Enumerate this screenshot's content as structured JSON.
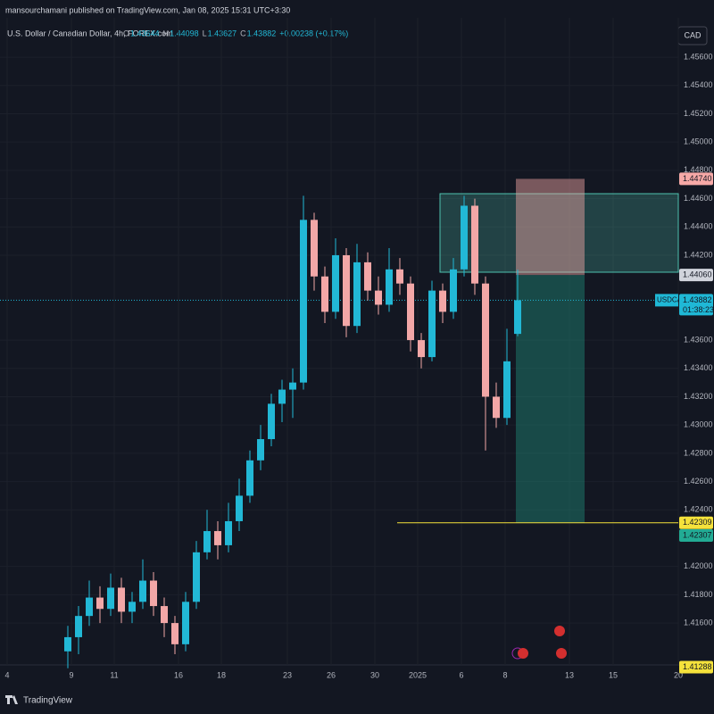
{
  "header": {
    "publisher": "mansourchamani published on TradingView.com, Jan 08, 2025 15:31 UTC+3:30",
    "symbol": "U.S. Dollar / Canadian Dollar, 4h, FOREX.com",
    "ohlc_labels": [
      "O",
      "H",
      "L",
      "C"
    ],
    "change": "+0.00238 (+0.17%)",
    "currency": "CAD"
  },
  "footer": {
    "brand": "TradingView"
  },
  "chart_data": {
    "type": "candlestick",
    "up_color": "#22b8d6",
    "down_color": "#f2a7a7",
    "x": [
      17,
      20,
      23,
      26,
      29,
      32,
      35,
      38,
      41,
      44,
      47,
      50,
      53,
      56,
      59,
      62,
      65,
      68,
      71,
      74,
      77,
      80,
      83,
      86,
      89,
      92,
      95,
      98,
      101,
      104,
      107,
      110,
      113,
      116,
      119,
      122,
      125,
      128,
      131,
      134,
      137,
      140,
      143
    ],
    "open": [
      1.414,
      1.415,
      1.4165,
      1.4178,
      1.417,
      1.4185,
      1.4168,
      1.4175,
      1.419,
      1.4172,
      1.416,
      1.4145,
      1.4175,
      1.421,
      1.4225,
      1.4215,
      1.4232,
      1.425,
      1.4275,
      1.429,
      1.4315,
      1.4325,
      1.433,
      1.4445,
      1.4405,
      1.438,
      1.442,
      1.437,
      1.4415,
      1.4395,
      1.4385,
      1.441,
      1.44,
      1.436,
      1.4348,
      1.4395,
      1.438,
      1.441,
      1.4455,
      1.44,
      1.432,
      1.4305,
      1.43644
    ],
    "high": [
      1.4158,
      1.4172,
      1.419,
      1.4186,
      1.4195,
      1.4192,
      1.4182,
      1.4205,
      1.4196,
      1.4178,
      1.4165,
      1.4182,
      1.4218,
      1.424,
      1.4232,
      1.4245,
      1.4262,
      1.4282,
      1.43,
      1.4322,
      1.4332,
      1.434,
      1.4462,
      1.445,
      1.4412,
      1.4432,
      1.4425,
      1.4428,
      1.4422,
      1.4405,
      1.4425,
      1.4418,
      1.4405,
      1.4365,
      1.4402,
      1.44,
      1.4418,
      1.4462,
      1.446,
      1.4405,
      1.433,
      1.4368,
      1.44098
    ],
    "low": [
      1.4128,
      1.4138,
      1.4158,
      1.416,
      1.4165,
      1.416,
      1.416,
      1.417,
      1.4165,
      1.415,
      1.4138,
      1.414,
      1.417,
      1.4205,
      1.4205,
      1.421,
      1.4225,
      1.4245,
      1.4268,
      1.4285,
      1.4302,
      1.4305,
      1.4325,
      1.4395,
      1.4372,
      1.4375,
      1.4362,
      1.4365,
      1.4388,
      1.4378,
      1.438,
      1.4392,
      1.4352,
      1.434,
      1.4345,
      1.4372,
      1.4375,
      1.4405,
      1.4392,
      1.4282,
      1.4298,
      1.43,
      1.43627
    ],
    "close": [
      1.415,
      1.4165,
      1.4178,
      1.417,
      1.4185,
      1.4168,
      1.4175,
      1.419,
      1.4172,
      1.416,
      1.4145,
      1.4175,
      1.421,
      1.4225,
      1.4215,
      1.4232,
      1.425,
      1.4275,
      1.429,
      1.4315,
      1.4325,
      1.433,
      1.4445,
      1.4405,
      1.438,
      1.442,
      1.437,
      1.4415,
      1.4395,
      1.4385,
      1.441,
      1.44,
      1.436,
      1.4348,
      1.4395,
      1.438,
      1.441,
      1.4455,
      1.44,
      1.432,
      1.4305,
      1.4345,
      1.43882
    ],
    "xlim": [
      0,
      188
    ],
    "xticks": [
      {
        "value": 0,
        "label": "4"
      },
      {
        "value": 18,
        "label": "9"
      },
      {
        "value": 30,
        "label": "11"
      },
      {
        "value": 48,
        "label": "16"
      },
      {
        "value": 60,
        "label": "18"
      },
      {
        "value": 78.5,
        "label": "23"
      },
      {
        "value": 90.75,
        "label": "26"
      },
      {
        "value": 103,
        "label": "30"
      },
      {
        "value": 115,
        "label": "2025"
      },
      {
        "value": 127.25,
        "label": "6"
      },
      {
        "value": 139.5,
        "label": "8"
      },
      {
        "value": 157.5,
        "label": "13"
      },
      {
        "value": 169.75,
        "label": "15"
      },
      {
        "value": 188,
        "label": "20"
      }
    ],
    "ylim": [
      1.41304,
      1.45878
    ],
    "yticks": [
      {
        "value": 1.456,
        "label": "1.45600"
      },
      {
        "value": 1.454,
        "label": "1.45400"
      },
      {
        "value": 1.452,
        "label": "1.45200"
      },
      {
        "value": 1.45,
        "label": "1.45000"
      },
      {
        "value": 1.448,
        "label": "1.44800"
      },
      {
        "value": 1.446,
        "label": "1.44600"
      },
      {
        "value": 1.444,
        "label": "1.44400"
      },
      {
        "value": 1.442,
        "label": "1.44200"
      },
      {
        "value": 1.436,
        "label": "1.43600"
      },
      {
        "value": 1.434,
        "label": "1.43400"
      },
      {
        "value": 1.432,
        "label": "1.43200"
      },
      {
        "value": 1.43,
        "label": "1.43000"
      },
      {
        "value": 1.428,
        "label": "1.42800"
      },
      {
        "value": 1.426,
        "label": "1.42600"
      },
      {
        "value": 1.424,
        "label": "1.42400"
      },
      {
        "value": 1.42,
        "label": "1.42000"
      },
      {
        "value": 1.418,
        "label": "1.41800"
      },
      {
        "value": 1.416,
        "label": "1.41600"
      }
    ],
    "zone": {
      "x": [
        121.25,
        188
      ],
      "top": 1.44635,
      "bottom": 1.4408,
      "color": "#4fc3b0"
    },
    "position": {
      "x": [
        142.5,
        161.75
      ],
      "stop": {
        "value": 1.4474,
        "label": "1.44740"
      },
      "entry": {
        "value": 1.4406,
        "label": "1.44060"
      },
      "target": {
        "value": 1.42307,
        "label": "1.42307"
      },
      "stop_color": "#f7a9a7",
      "target_color": "#1f8a78"
    },
    "hline": {
      "x": [
        109.25,
        188
      ],
      "value": 1.42309,
      "label": "1.42309",
      "color": "#f5e23b"
    },
    "low_marker": {
      "value": 1.41288,
      "label": "1.41288"
    },
    "last_price": {
      "symbol": "USDCAD",
      "countdown": "01:38:23",
      "color": "#1fb8d6"
    }
  }
}
